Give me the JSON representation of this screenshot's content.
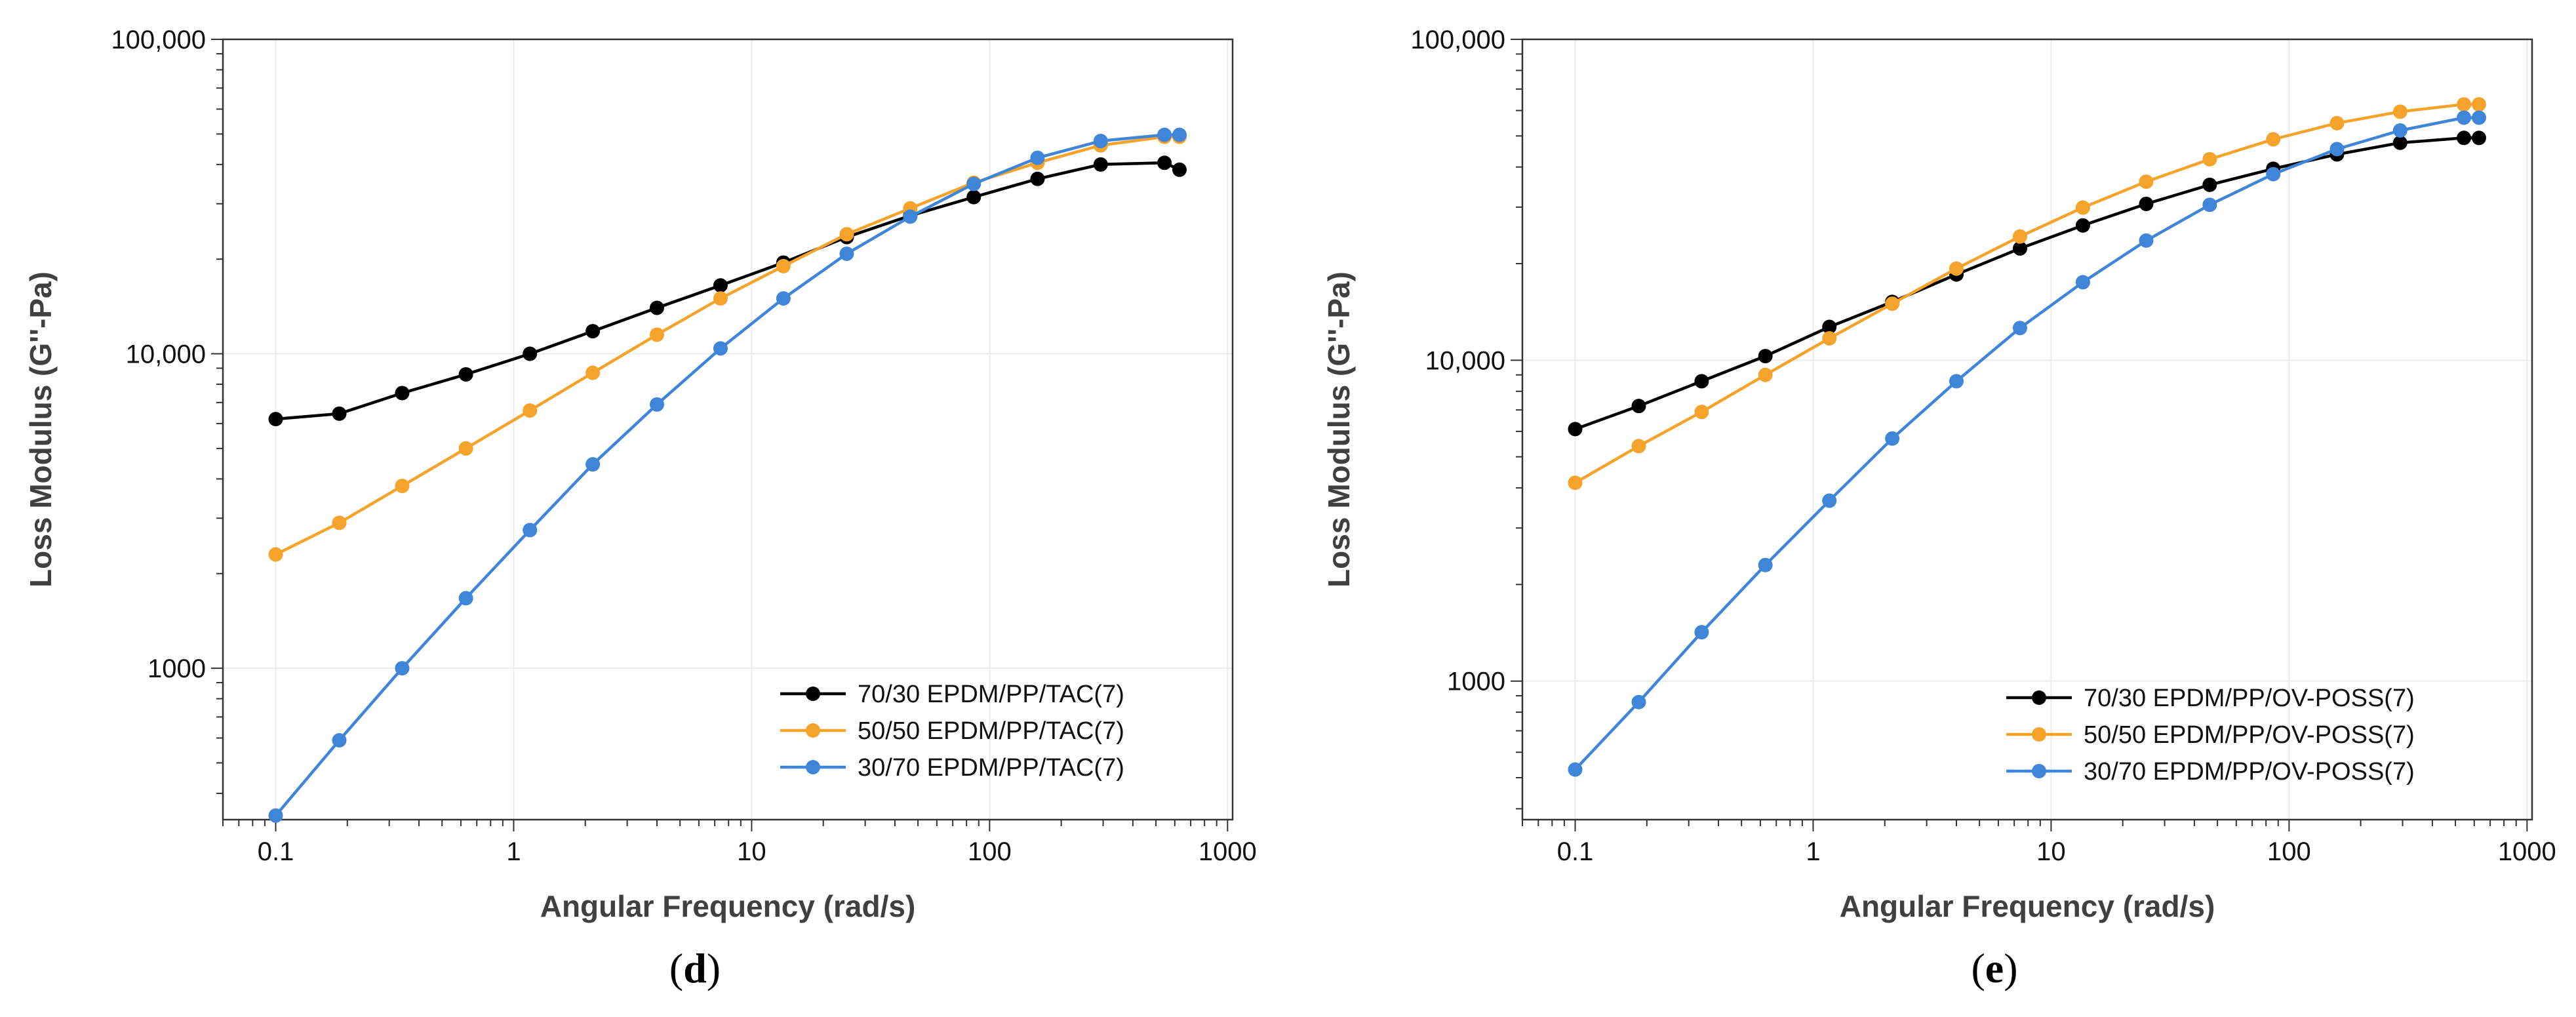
{
  "chart_data": [
    {
      "type": "line",
      "panel_label": "d",
      "xlabel": "Angular Frequency (rad/s)",
      "ylabel": "Loss  Modulus (G''-Pa)",
      "xscale": "log",
      "yscale": "log",
      "xlim": [
        0.06,
        1050
      ],
      "ylim": [
        330,
        100000
      ],
      "x_ticks": [
        {
          "value": 0.1,
          "label": "0.1"
        },
        {
          "value": 1,
          "label": "1"
        },
        {
          "value": 10,
          "label": "10"
        },
        {
          "value": 100,
          "label": "100"
        },
        {
          "value": 1000,
          "label": "1000"
        }
      ],
      "y_ticks": [
        {
          "value": 1000,
          "label": "1000"
        },
        {
          "value": 10000,
          "label": "10,000"
        },
        {
          "value": 100000,
          "label": "100,000"
        }
      ],
      "grid": true,
      "legend_position": "bottom-right",
      "x": [
        0.1,
        0.185,
        0.34,
        0.63,
        1.17,
        2.15,
        4.0,
        7.4,
        13.6,
        25.1,
        46.4,
        85.8,
        159,
        293,
        543,
        628
      ],
      "series": [
        {
          "name": "70/30 EPDM/PP/TAC(7)",
          "color": "#000000",
          "values": [
            6200,
            6450,
            7500,
            8600,
            10000,
            11800,
            14000,
            16500,
            19500,
            23500,
            27500,
            31500,
            36000,
            40000,
            40500,
            38500
          ]
        },
        {
          "name": "50/50 EPDM/PP/TAC(7)",
          "color": "#F5A32A",
          "values": [
            2300,
            2900,
            3800,
            5000,
            6600,
            8700,
            11500,
            15000,
            19000,
            24000,
            29000,
            35000,
            40500,
            46000,
            49000,
            49000
          ]
        },
        {
          "name": "30/70 EPDM/PP/TAC(7)",
          "color": "#3F86D9",
          "values": [
            340,
            590,
            1000,
            1670,
            2750,
            4450,
            6900,
            10400,
            15000,
            20800,
            27300,
            34700,
            42000,
            47500,
            49700,
            49700
          ]
        }
      ]
    },
    {
      "type": "line",
      "panel_label": "e",
      "xlabel": "Angular Frequency (rad/s)",
      "ylabel": "Loss  Modulus (G''-Pa)",
      "xscale": "log",
      "yscale": "log",
      "xlim": [
        0.06,
        1050
      ],
      "ylim": [
        370,
        100000
      ],
      "x_ticks": [
        {
          "value": 0.1,
          "label": "0.1"
        },
        {
          "value": 1,
          "label": "1"
        },
        {
          "value": 10,
          "label": "10"
        },
        {
          "value": 100,
          "label": "100"
        },
        {
          "value": 1000,
          "label": "1000"
        }
      ],
      "y_ticks": [
        {
          "value": 1000,
          "label": "1000"
        },
        {
          "value": 10000,
          "label": "10,000"
        },
        {
          "value": 100000,
          "label": "100,000"
        }
      ],
      "grid": true,
      "legend_position": "bottom-right",
      "x": [
        0.1,
        0.185,
        0.34,
        0.63,
        1.17,
        2.15,
        4.0,
        7.4,
        13.6,
        25.1,
        46.4,
        85.8,
        159,
        293,
        543,
        628
      ],
      "series": [
        {
          "name": "70/30 EPDM/PP/OV-POSS(7)",
          "color": "#000000",
          "values": [
            6100,
            7200,
            8600,
            10300,
            12700,
            15200,
            18500,
            22300,
            26300,
            30700,
            35200,
            39500,
            43800,
            47600,
            49300,
            49300
          ]
        },
        {
          "name": "50/50 EPDM/PP/OV-POSS(7)",
          "color": "#F5A32A",
          "values": [
            4150,
            5400,
            6900,
            9000,
            11700,
            15000,
            19300,
            24300,
            29900,
            36000,
            42300,
            48800,
            54800,
            59500,
            62700,
            62700
          ]
        },
        {
          "name": "30/70 EPDM/PP/OV-POSS(7)",
          "color": "#3F86D9",
          "values": [
            530,
            860,
            1420,
            2300,
            3650,
            5700,
            8600,
            12600,
            17500,
            23600,
            30500,
            38000,
            45500,
            52000,
            57000,
            57000
          ]
        }
      ]
    }
  ]
}
